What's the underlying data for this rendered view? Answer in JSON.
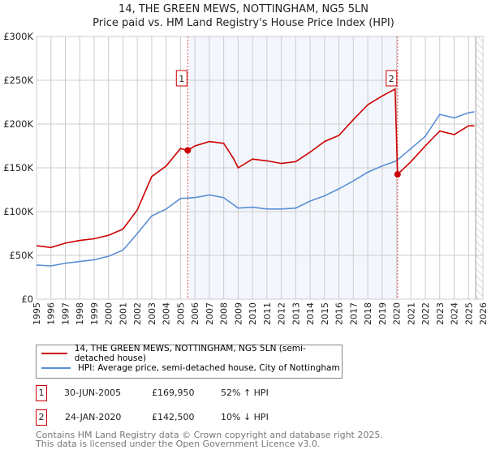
{
  "title_line1": "14, THE GREEN MEWS, NOTTINGHAM, NG5 5LN",
  "title_line2": "Price paid vs. HM Land Registry's House Price Index (HPI)",
  "chart_data": {
    "type": "line",
    "title": "14, THE GREEN MEWS, NOTTINGHAM, NG5 5LN - Price paid vs. HM Land Registry's House Price Index (HPI)",
    "xlim": [
      1995,
      2026
    ],
    "ylim": [
      0,
      300000
    ],
    "yticks": [
      0,
      50000,
      100000,
      150000,
      200000,
      250000,
      300000
    ],
    "ytick_labels": [
      "£0",
      "£50K",
      "£100K",
      "£150K",
      "£200K",
      "£250K",
      "£300K"
    ],
    "xticks": [
      1995,
      1996,
      1997,
      1998,
      1999,
      2000,
      2001,
      2002,
      2003,
      2004,
      2005,
      2006,
      2007,
      2008,
      2009,
      2010,
      2011,
      2012,
      2013,
      2014,
      2015,
      2016,
      2017,
      2018,
      2019,
      2020,
      2021,
      2022,
      2023,
      2024,
      2025,
      2026
    ],
    "grid": true,
    "shaded_range": [
      2005.5,
      2020.07
    ],
    "forecast_hatch_from": 2025.5,
    "series": [
      {
        "name": "14, THE GREEN MEWS, NOTTINGHAM, NG5 5LN (semi-detached house)",
        "color": "#cc0000",
        "x": [
          1995,
          1996,
          1997,
          1998,
          1999,
          2000,
          2001,
          2002,
          2003,
          2004,
          2005,
          2005.5,
          2006,
          2007,
          2008,
          2008.7,
          2009,
          2010,
          2011,
          2012,
          2013,
          2014,
          2015,
          2016,
          2017,
          2018,
          2019,
          2019.9,
          2020.07,
          2021,
          2022,
          2023,
          2024,
          2025,
          2025.4
        ],
        "y": [
          61000,
          59000,
          64000,
          67000,
          69000,
          73000,
          80000,
          102000,
          140000,
          152000,
          172000,
          169950,
          175000,
          180000,
          178000,
          160000,
          150000,
          160000,
          158000,
          155000,
          157000,
          168000,
          180000,
          187000,
          205000,
          222000,
          232000,
          240000,
          142500,
          157000,
          175000,
          192000,
          188000,
          198000,
          198000
        ]
      },
      {
        "name": "HPI: Average price, semi-detached house, City of Nottingham",
        "color": "#5b8fd4",
        "x": [
          1995,
          1996,
          1997,
          1998,
          1999,
          2000,
          2001,
          2002,
          2003,
          2004,
          2005,
          2006,
          2007,
          2008,
          2009,
          2010,
          2011,
          2012,
          2013,
          2014,
          2015,
          2016,
          2017,
          2018,
          2019,
          2020,
          2021,
          2022,
          2023,
          2024,
          2025,
          2025.4
        ],
        "y": [
          39000,
          38000,
          41000,
          43000,
          45000,
          49000,
          56000,
          75000,
          95000,
          103000,
          115000,
          116000,
          119000,
          116000,
          104000,
          105000,
          103000,
          103000,
          104000,
          112000,
          118000,
          126000,
          135000,
          145000,
          152000,
          158000,
          172000,
          186000,
          211000,
          207000,
          213000,
          214000
        ]
      }
    ],
    "annotations": [
      {
        "label": "1",
        "x": 2005.5,
        "y": 169950
      },
      {
        "label": "2",
        "x": 2020.07,
        "y": 142500
      }
    ]
  },
  "legend": {
    "property": "14, THE GREEN MEWS, NOTTINGHAM, NG5 5LN (semi-detached house)",
    "hpi": "HPI: Average price, semi-detached house, City of Nottingham"
  },
  "transactions": [
    {
      "marker": "1",
      "date": "30-JUN-2005",
      "price": "£169,950",
      "hpi": "52% ↑ HPI"
    },
    {
      "marker": "2",
      "date": "24-JAN-2020",
      "price": "£142,500",
      "hpi": "10% ↓ HPI"
    }
  ],
  "footer_line1": "Contains HM Land Registry data © Crown copyright and database right 2025.",
  "footer_line2": "This data is licensed under the Open Government Licence v3.0."
}
